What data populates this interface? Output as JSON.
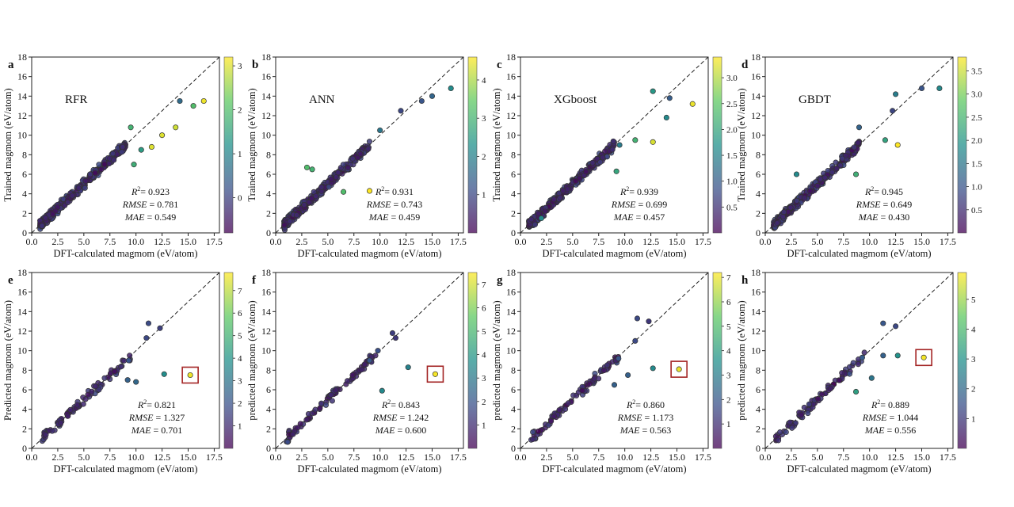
{
  "figure": {
    "colormap": [
      "#440154",
      "#3b528b",
      "#21918c",
      "#5ec962",
      "#fde725"
    ],
    "line_color": "#222222",
    "box_color": "#a32424"
  },
  "chart_data": [
    {
      "type": "scatter",
      "panel_label": "a",
      "model_label": "RFR",
      "xlabel": "DFT-calculated magmom (eV/atom)",
      "ylabel": "Trained magmom (eV/atom)",
      "xlim": [
        0,
        18
      ],
      "ylim": [
        0,
        18
      ],
      "xticks": [
        "0.0",
        "2.5",
        "5.0",
        "7.5",
        "10.0",
        "12.5",
        "15.0",
        "17.5"
      ],
      "yticks": [
        "0",
        "2",
        "4",
        "6",
        "8",
        "10",
        "12",
        "14",
        "16",
        "18"
      ],
      "r2": "0.923",
      "rmse": "0.781",
      "mae": "0.549",
      "metric_labels": {
        "r2": "R",
        "rmse": "RMSE",
        "mae": "MAE"
      },
      "colorbar": {
        "range": [
          -0.8,
          3.2
        ],
        "ticks": [
          "0",
          "1",
          "2",
          "3"
        ],
        "tick_values": [
          0,
          1,
          2,
          3
        ]
      },
      "highlight_box": null,
      "dense": true,
      "outliers": [
        {
          "x": 14.2,
          "y": 13.5,
          "c": 0.6
        },
        {
          "x": 15.5,
          "y": 13.0,
          "c": 2.0
        },
        {
          "x": 16.5,
          "y": 13.5,
          "c": 3.1
        },
        {
          "x": 13.8,
          "y": 10.8,
          "c": 2.9
        },
        {
          "x": 12.5,
          "y": 10.0,
          "c": 3.0
        },
        {
          "x": 11.5,
          "y": 8.8,
          "c": 3.0
        },
        {
          "x": 9.5,
          "y": 10.8,
          "c": 1.8
        },
        {
          "x": 9.8,
          "y": 7.0,
          "c": 1.7
        },
        {
          "x": 10.5,
          "y": 8.5,
          "c": 1.4
        }
      ]
    },
    {
      "type": "scatter",
      "panel_label": "b",
      "model_label": "ANN",
      "xlabel": "DFT-calculated magmom (eV/atom)",
      "ylabel": "Trained magmom (eV/atom)",
      "xlim": [
        0,
        18
      ],
      "ylim": [
        0,
        18
      ],
      "xticks": [
        "0.0",
        "2.5",
        "5.0",
        "7.5",
        "10.0",
        "12.5",
        "15.0",
        "17.5"
      ],
      "yticks": [
        "0",
        "2",
        "4",
        "6",
        "8",
        "10",
        "12",
        "14",
        "16",
        "18"
      ],
      "r2": "0.931",
      "rmse": "0.743",
      "mae": "0.459",
      "metric_labels": {
        "r2": "R",
        "rmse": "RMSE",
        "mae": "MAE"
      },
      "colorbar": {
        "range": [
          0,
          4.6
        ],
        "ticks": [
          "1",
          "2",
          "3",
          "4"
        ],
        "tick_values": [
          1,
          2,
          3,
          4
        ]
      },
      "highlight_box": null,
      "dense": true,
      "outliers": [
        {
          "x": 15.0,
          "y": 14.0,
          "c": 1.5
        },
        {
          "x": 16.8,
          "y": 14.8,
          "c": 2.2
        },
        {
          "x": 14.0,
          "y": 13.5,
          "c": 1.2
        },
        {
          "x": 9.0,
          "y": 4.3,
          "c": 4.6
        },
        {
          "x": 3.0,
          "y": 6.7,
          "c": 3.2
        },
        {
          "x": 3.5,
          "y": 6.5,
          "c": 3.0
        },
        {
          "x": 6.5,
          "y": 4.2,
          "c": 3.2
        },
        {
          "x": 12.0,
          "y": 12.5,
          "c": 1.0
        },
        {
          "x": 10.0,
          "y": 10.5,
          "c": 1.8
        }
      ]
    },
    {
      "type": "scatter",
      "panel_label": "c",
      "model_label": "XGboost",
      "xlabel": "DFT-calculated magmom (eV/atom)",
      "ylabel": "Trained magmom (eV/atom)",
      "xlim": [
        0,
        18
      ],
      "ylim": [
        0,
        18
      ],
      "xticks": [
        "0.0",
        "2.5",
        "5.0",
        "7.5",
        "10.0",
        "12.5",
        "15.0",
        "17.5"
      ],
      "yticks": [
        "0",
        "2",
        "4",
        "6",
        "8",
        "10",
        "12",
        "14",
        "16",
        "18"
      ],
      "r2": "0.939",
      "rmse": "0.699",
      "mae": "0.457",
      "metric_labels": {
        "r2": "R",
        "rmse": "RMSE",
        "mae": "MAE"
      },
      "colorbar": {
        "range": [
          0,
          3.4
        ],
        "ticks": [
          "0.5",
          "1.0",
          "1.5",
          "2.0",
          "2.5",
          "3.0"
        ],
        "tick_values": [
          0.5,
          1,
          1.5,
          2,
          2.5,
          3
        ]
      },
      "highlight_box": null,
      "dense": true,
      "outliers": [
        {
          "x": 16.5,
          "y": 13.2,
          "c": 3.3
        },
        {
          "x": 12.7,
          "y": 9.3,
          "c": 3.2
        },
        {
          "x": 12.7,
          "y": 14.5,
          "c": 1.8
        },
        {
          "x": 14.3,
          "y": 13.8,
          "c": 1.0
        },
        {
          "x": 14.0,
          "y": 11.8,
          "c": 1.6
        },
        {
          "x": 9.2,
          "y": 6.3,
          "c": 2.0
        },
        {
          "x": 11.0,
          "y": 9.5,
          "c": 2.2
        },
        {
          "x": 9.5,
          "y": 9.0,
          "c": 1.4
        },
        {
          "x": 2.0,
          "y": 1.5,
          "c": 1.6
        }
      ]
    },
    {
      "type": "scatter",
      "panel_label": "d",
      "model_label": "GBDT",
      "xlabel": "DFT-calculated magmom (eV/atom)",
      "ylabel": "Trained magmom (eV/atom)",
      "xlim": [
        0,
        18
      ],
      "ylim": [
        0,
        18
      ],
      "xticks": [
        "0.0",
        "2.5",
        "5.0",
        "7.5",
        "10.0",
        "12.5",
        "15.0",
        "17.5"
      ],
      "yticks": [
        "0",
        "2",
        "4",
        "6",
        "8",
        "10",
        "12",
        "14",
        "16",
        "18"
      ],
      "r2": "0.945",
      "rmse": "0.649",
      "mae": "0.430",
      "metric_labels": {
        "r2": "R",
        "rmse": "RMSE",
        "mae": "MAE"
      },
      "colorbar": {
        "range": [
          0,
          3.8
        ],
        "ticks": [
          "0.5",
          "1.0",
          "1.5",
          "2.0",
          "2.5",
          "3.0",
          "3.5"
        ],
        "tick_values": [
          0.5,
          1,
          1.5,
          2,
          2.5,
          3,
          3.5
        ]
      },
      "highlight_box": null,
      "dense": true,
      "outliers": [
        {
          "x": 12.7,
          "y": 9.0,
          "c": 3.8
        },
        {
          "x": 16.7,
          "y": 14.8,
          "c": 1.8
        },
        {
          "x": 15.0,
          "y": 14.8,
          "c": 1.0
        },
        {
          "x": 12.5,
          "y": 14.2,
          "c": 1.6
        },
        {
          "x": 12.2,
          "y": 12.5,
          "c": 0.8
        },
        {
          "x": 11.5,
          "y": 9.5,
          "c": 2.2
        },
        {
          "x": 8.7,
          "y": 6.0,
          "c": 2.4
        },
        {
          "x": 3.0,
          "y": 6.0,
          "c": 1.8
        },
        {
          "x": 9.0,
          "y": 10.8,
          "c": 1.2
        }
      ]
    },
    {
      "type": "scatter",
      "panel_label": "e",
      "model_label": "",
      "xlabel": "DFT-calculated magmom (eV/atom)",
      "ylabel": "Predicted magmom (eV/atom)",
      "xlim": [
        0,
        18
      ],
      "ylim": [
        0,
        18
      ],
      "xticks": [
        "0.0",
        "2.5",
        "5.0",
        "7.5",
        "10.0",
        "12.5",
        "15.0",
        "17.5"
      ],
      "yticks": [
        "0",
        "2",
        "4",
        "6",
        "8",
        "10",
        "12",
        "14",
        "16",
        "18"
      ],
      "r2": "0.821",
      "rmse": "1.327",
      "mae": "0.701",
      "metric_labels": {
        "r2": "R",
        "rmse": "RMSE",
        "mae": "MAE"
      },
      "colorbar": {
        "range": [
          0,
          7.8
        ],
        "ticks": [
          "1",
          "2",
          "3",
          "4",
          "5",
          "6",
          "7"
        ],
        "tick_values": [
          1,
          2,
          3,
          4,
          5,
          6,
          7
        ]
      },
      "highlight_box": {
        "x": 15.2,
        "y": 7.5
      },
      "dense": false,
      "outliers": [
        {
          "x": 15.2,
          "y": 7.5,
          "c": 7.6
        },
        {
          "x": 12.7,
          "y": 7.6,
          "c": 3.8
        },
        {
          "x": 11.2,
          "y": 12.8,
          "c": 1.8
        },
        {
          "x": 12.3,
          "y": 12.3,
          "c": 1.5
        },
        {
          "x": 10.0,
          "y": 6.8,
          "c": 2.6
        },
        {
          "x": 11.0,
          "y": 11.3,
          "c": 1.7
        },
        {
          "x": 9.3,
          "y": 9.0,
          "c": 2.0
        },
        {
          "x": 9.2,
          "y": 7.0,
          "c": 2.4
        }
      ]
    },
    {
      "type": "scatter",
      "panel_label": "f",
      "model_label": "",
      "xlabel": "DFT-calculated magmom (eV/atom)",
      "ylabel": "predicted magmom (eV/atom)",
      "xlim": [
        0,
        18
      ],
      "ylim": [
        0,
        18
      ],
      "xticks": [
        "0.0",
        "2.5",
        "5.0",
        "7.5",
        "10.0",
        "12.5",
        "15.0",
        "17.5"
      ],
      "yticks": [
        "0",
        "2",
        "4",
        "6",
        "8",
        "10",
        "12",
        "14",
        "16",
        "18"
      ],
      "r2": "0.843",
      "rmse": "1.242",
      "mae": "0.600",
      "metric_labels": {
        "r2": "R",
        "rmse": "RMSE",
        "mae": "MAE"
      },
      "colorbar": {
        "range": [
          0,
          7.5
        ],
        "ticks": [
          "1",
          "2",
          "3",
          "4",
          "5",
          "6",
          "7"
        ],
        "tick_values": [
          1,
          2,
          3,
          4,
          5,
          6,
          7
        ]
      },
      "highlight_box": {
        "x": 15.3,
        "y": 7.6
      },
      "dense": false,
      "outliers": [
        {
          "x": 15.3,
          "y": 7.6,
          "c": 7.4
        },
        {
          "x": 12.7,
          "y": 8.3,
          "c": 3.3
        },
        {
          "x": 10.2,
          "y": 5.9,
          "c": 3.5
        },
        {
          "x": 11.2,
          "y": 11.8,
          "c": 1.4
        },
        {
          "x": 11.5,
          "y": 11.3,
          "c": 1.2
        },
        {
          "x": 9.8,
          "y": 10.0,
          "c": 1.8
        },
        {
          "x": 9.0,
          "y": 9.0,
          "c": 2.0
        }
      ]
    },
    {
      "type": "scatter",
      "panel_label": "g",
      "model_label": "",
      "xlabel": "DFT-calculated magmom (eV/atom)",
      "ylabel": "predicted magmom (eV/atom)",
      "xlim": [
        0,
        18
      ],
      "ylim": [
        0,
        18
      ],
      "xticks": [
        "0.0",
        "2.5",
        "5.0",
        "7.5",
        "10.0",
        "12.5",
        "15.0",
        "17.5"
      ],
      "yticks": [
        "0",
        "2",
        "4",
        "6",
        "8",
        "10",
        "12",
        "14",
        "16",
        "18"
      ],
      "r2": "0.860",
      "rmse": "1.173",
      "mae": "0.563",
      "metric_labels": {
        "r2": "R",
        "rmse": "RMSE",
        "mae": "MAE"
      },
      "colorbar": {
        "range": [
          0,
          7.2
        ],
        "ticks": [
          "1",
          "2",
          "3",
          "4",
          "5",
          "6",
          "7"
        ],
        "tick_values": [
          1,
          2,
          3,
          4,
          5,
          6,
          7
        ]
      },
      "highlight_box": {
        "x": 15.2,
        "y": 8.1
      },
      "dense": false,
      "outliers": [
        {
          "x": 15.2,
          "y": 8.1,
          "c": 7.0
        },
        {
          "x": 12.7,
          "y": 8.2,
          "c": 3.4
        },
        {
          "x": 11.2,
          "y": 13.3,
          "c": 1.6
        },
        {
          "x": 12.3,
          "y": 13.0,
          "c": 1.2
        },
        {
          "x": 10.3,
          "y": 7.5,
          "c": 2.2
        },
        {
          "x": 9.0,
          "y": 6.5,
          "c": 2.2
        },
        {
          "x": 9.4,
          "y": 9.2,
          "c": 1.9
        },
        {
          "x": 11.0,
          "y": 11.0,
          "c": 1.6
        }
      ]
    },
    {
      "type": "scatter",
      "panel_label": "h",
      "model_label": "",
      "xlabel": "DFT-calculated magmom (eV/atom)",
      "ylabel": "predicted magmom (eV/atom)",
      "xlim": [
        0,
        18
      ],
      "ylim": [
        0,
        18
      ],
      "xticks": [
        "0.0",
        "2.5",
        "5.0",
        "7.5",
        "10.0",
        "12.5",
        "15.0",
        "17.5"
      ],
      "yticks": [
        "0",
        "2",
        "4",
        "6",
        "8",
        "10",
        "12",
        "14",
        "16",
        "18"
      ],
      "r2": "0.889",
      "rmse": "1.044",
      "mae": "0.556",
      "metric_labels": {
        "r2": "R",
        "rmse": "RMSE",
        "mae": "MAE"
      },
      "colorbar": {
        "range": [
          0,
          5.9
        ],
        "ticks": [
          "1",
          "2",
          "3",
          "4",
          "5"
        ],
        "tick_values": [
          1,
          2,
          3,
          4,
          5
        ]
      },
      "highlight_box": {
        "x": 15.2,
        "y": 9.3
      },
      "dense": false,
      "outliers": [
        {
          "x": 15.2,
          "y": 9.3,
          "c": 5.8
        },
        {
          "x": 12.7,
          "y": 9.5,
          "c": 3.0
        },
        {
          "x": 11.3,
          "y": 12.8,
          "c": 1.6
        },
        {
          "x": 12.5,
          "y": 12.5,
          "c": 1.3
        },
        {
          "x": 10.2,
          "y": 7.2,
          "c": 2.3
        },
        {
          "x": 8.7,
          "y": 5.8,
          "c": 3.3
        },
        {
          "x": 11.3,
          "y": 9.5,
          "c": 1.8
        },
        {
          "x": 9.3,
          "y": 9.3,
          "c": 1.7
        }
      ]
    }
  ]
}
